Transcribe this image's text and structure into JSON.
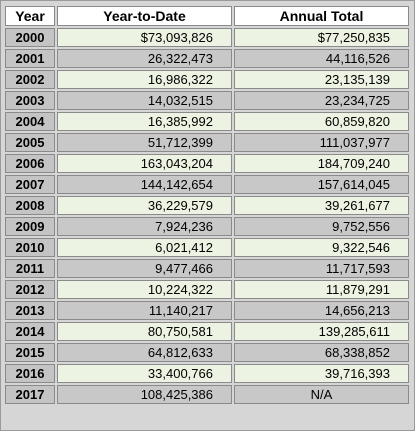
{
  "table": {
    "header": [
      "Year",
      "Year-to-Date",
      "Annual Total"
    ],
    "rows": [
      [
        "2000",
        "$73,093,826",
        "$77,250,835"
      ],
      [
        "2001",
        "26,322,473",
        "44,116,526"
      ],
      [
        "2002",
        "16,986,322",
        "23,135,139"
      ],
      [
        "2003",
        "14,032,515",
        "23,234,725"
      ],
      [
        "2004",
        "16,385,992",
        "60,859,820"
      ],
      [
        "2005",
        "51,712,399",
        "111,037,977"
      ],
      [
        "2006",
        "163,043,204",
        "184,709,240"
      ],
      [
        "2007",
        "144,142,654",
        "157,614,045"
      ],
      [
        "2008",
        "36,229,579",
        "39,261,677"
      ],
      [
        "2009",
        "7,924,236",
        "9,752,556"
      ],
      [
        "2010",
        "6,021,412",
        "9,322,546"
      ],
      [
        "2011",
        "9,477,466",
        "11,717,593"
      ],
      [
        "2012",
        "10,224,322",
        "11,879,291"
      ],
      [
        "2013",
        "11,140,217",
        "14,656,213"
      ],
      [
        "2014",
        "80,750,581",
        "139,285,611"
      ],
      [
        "2015",
        "64,812,633",
        "68,338,852"
      ],
      [
        "2016",
        "33,400,766",
        "39,716,393"
      ],
      [
        "2017",
        "108,425,386",
        "N/A"
      ]
    ]
  }
}
